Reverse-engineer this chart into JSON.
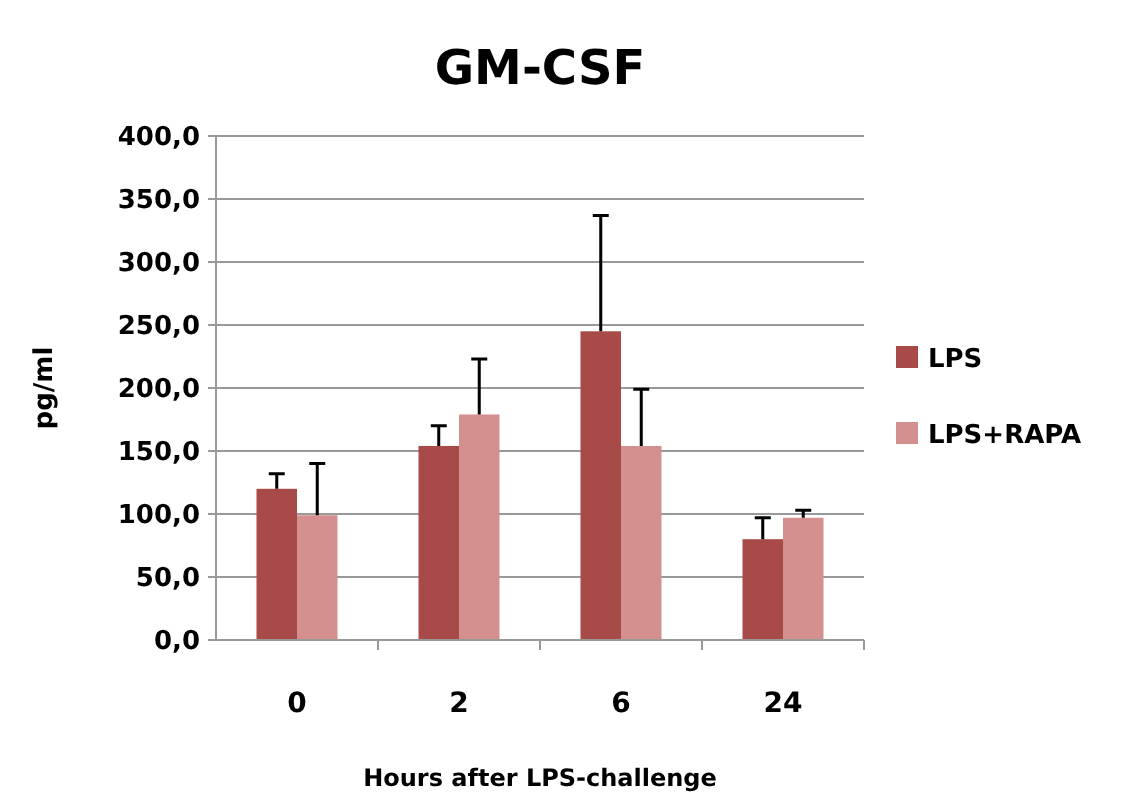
{
  "chart_data": {
    "type": "bar",
    "title": "GM-CSF",
    "xlabel": "Hours after LPS-challenge",
    "ylabel": "pg/ml",
    "categories": [
      "0",
      "2",
      "6",
      "24"
    ],
    "series": [
      {
        "name": "LPS",
        "color": "#a84a48",
        "values": [
          120,
          154,
          245,
          80
        ],
        "errors": [
          [
            120,
            132
          ],
          [
            154,
            170
          ],
          [
            245,
            337
          ],
          [
            80,
            97
          ]
        ]
      },
      {
        "name": "LPS+RAPA",
        "color": "#d4908e",
        "values": [
          99,
          179,
          154,
          97
        ],
        "errors": [
          [
            99,
            140
          ],
          [
            179,
            223
          ],
          [
            154,
            199
          ],
          [
            97,
            103
          ]
        ]
      }
    ],
    "ylim": [
      0,
      400
    ],
    "yticks": [
      {
        "value": 0,
        "label": "0,0"
      },
      {
        "value": 50,
        "label": "50,0"
      },
      {
        "value": 100,
        "label": "100,0"
      },
      {
        "value": 150,
        "label": "150,0"
      },
      {
        "value": 200,
        "label": "200,0"
      },
      {
        "value": 250,
        "label": "250,0"
      },
      {
        "value": 300,
        "label": "300,0"
      },
      {
        "value": 350,
        "label": "350,0"
      },
      {
        "value": 400,
        "label": "400,0"
      }
    ],
    "grid": "y",
    "legend": "right"
  }
}
